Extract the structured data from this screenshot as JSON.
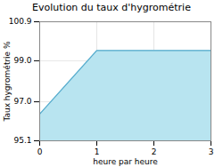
{
  "chart_data": {
    "type": "area",
    "title": "Evolution du taux d'hygrométrie",
    "xlabel": "heure par heure",
    "ylabel": "Taux hygrométrie %",
    "x": [
      0,
      1,
      2,
      3
    ],
    "values": [
      96.4,
      99.5,
      99.5,
      99.5
    ],
    "colors": [
      "#b8e4f0",
      "#55aacc"
    ],
    "xlim": [
      0,
      3
    ],
    "ylim": [
      95.1,
      100.9
    ],
    "xticks": [
      0,
      1,
      2,
      3
    ],
    "yticks": [
      95.1,
      {
        "value": 97.0,
        "label": "97.0"
      },
      {
        "value": 99.0,
        "label": "99.0"
      },
      100.9
    ],
    "grid": true
  }
}
